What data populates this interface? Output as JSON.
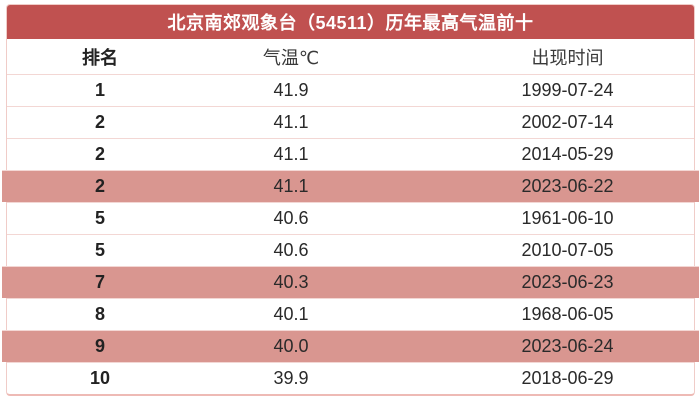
{
  "table": {
    "title": "北京南郊观象台（54511）历年最高气温前十",
    "columns": [
      "排名",
      "气温℃",
      "出现时间"
    ],
    "rows": [
      {
        "rank": "1",
        "temp": "41.9",
        "date": "1999-07-24",
        "highlighted": false
      },
      {
        "rank": "2",
        "temp": "41.1",
        "date": "2002-07-14",
        "highlighted": false
      },
      {
        "rank": "2",
        "temp": "41.1",
        "date": "2014-05-29",
        "highlighted": false
      },
      {
        "rank": "2",
        "temp": "41.1",
        "date": "2023-06-22",
        "highlighted": true
      },
      {
        "rank": "5",
        "temp": "40.6",
        "date": "1961-06-10",
        "highlighted": false
      },
      {
        "rank": "5",
        "temp": "40.6",
        "date": "2010-07-05",
        "highlighted": false
      },
      {
        "rank": "7",
        "temp": "40.3",
        "date": "2023-06-23",
        "highlighted": true
      },
      {
        "rank": "8",
        "temp": "40.1",
        "date": "1968-06-05",
        "highlighted": false
      },
      {
        "rank": "9",
        "temp": "40.0",
        "date": "2023-06-24",
        "highlighted": true
      },
      {
        "rank": "10",
        "temp": "39.9",
        "date": "2018-06-29",
        "highlighted": false
      }
    ]
  },
  "colors": {
    "header_red": "#c05150",
    "highlight_pink": "#d99690",
    "divider": "#f3d7d4",
    "outer_border": "#f0ccc8",
    "text": "#2a2a2a"
  },
  "chart_data": {
    "type": "table",
    "title": "北京南郊观象台（54511）历年最高气温前十",
    "columns": [
      "排名",
      "气温℃",
      "出现时间"
    ],
    "rows": [
      [
        "1",
        "41.9",
        "1999-07-24"
      ],
      [
        "2",
        "41.1",
        "2002-07-14"
      ],
      [
        "2",
        "41.1",
        "2014-05-29"
      ],
      [
        "2",
        "41.1",
        "2023-06-22"
      ],
      [
        "5",
        "40.6",
        "1961-06-10"
      ],
      [
        "5",
        "40.6",
        "2010-07-05"
      ],
      [
        "7",
        "40.3",
        "2023-06-23"
      ],
      [
        "8",
        "40.1",
        "1968-06-05"
      ],
      [
        "9",
        "40.0",
        "2023-06-24"
      ],
      [
        "10",
        "39.9",
        "2018-06-29"
      ]
    ],
    "highlighted_row_indices": [
      3,
      6,
      8
    ],
    "notes": "highlighted rows are 2023 records shown with pink background"
  }
}
